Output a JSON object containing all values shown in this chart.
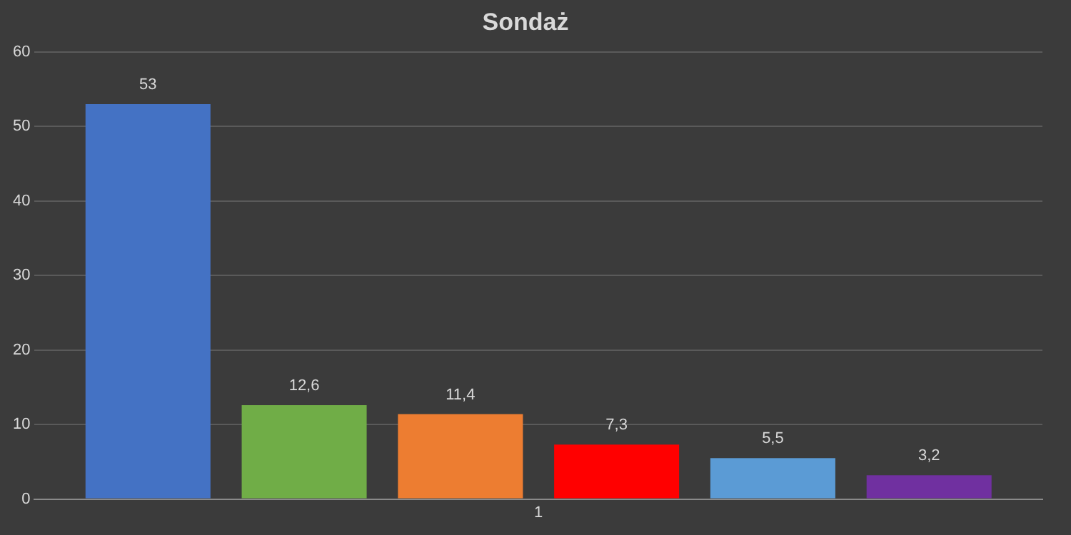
{
  "chart_data": {
    "type": "bar",
    "title": "Sondaż",
    "categories": [
      "1"
    ],
    "series": [
      {
        "color": "#4472c4",
        "values": [
          53
        ],
        "value_labels": [
          "53"
        ]
      },
      {
        "color": "#70ad47",
        "values": [
          12.6
        ],
        "value_labels": [
          "12,6"
        ]
      },
      {
        "color": "#ed7d31",
        "values": [
          11.4
        ],
        "value_labels": [
          "11,4"
        ]
      },
      {
        "color": "#ff0000",
        "values": [
          7.3
        ],
        "value_labels": [
          "7,3"
        ]
      },
      {
        "color": "#5b9bd5",
        "values": [
          5.5
        ],
        "value_labels": [
          "5,5"
        ]
      },
      {
        "color": "#7030a0",
        "values": [
          3.2
        ],
        "value_labels": [
          "3,2"
        ]
      }
    ],
    "ylim": [
      0,
      60
    ],
    "yticks": [
      0,
      10,
      20,
      30,
      40,
      50,
      60
    ],
    "grid": "y",
    "legend": false
  }
}
